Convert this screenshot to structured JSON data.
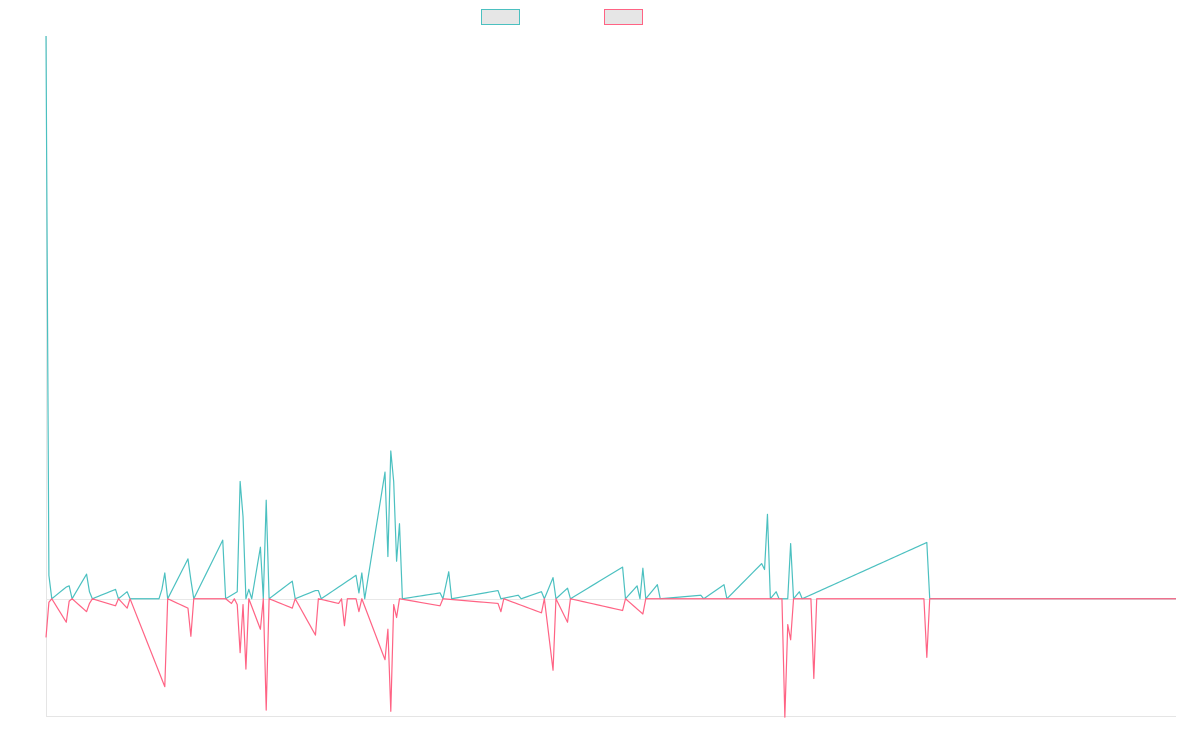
{
  "colors": {
    "series_a": "#4bc0c0",
    "series_b": "#ff6384",
    "legend_fill": "#e6e6e6",
    "axis": "#e5e5e5"
  },
  "chart_data": {
    "type": "line",
    "title": "",
    "xlabel": "",
    "ylabel": "",
    "grid": false,
    "legend": "top-center",
    "x_count": 391,
    "ylim": [
      -100,
      480
    ],
    "series": [
      {
        "color": "#4bc0c0",
        "points": [
          [
            0,
            480
          ],
          [
            1,
            20
          ],
          [
            2,
            0
          ],
          [
            7,
            10
          ],
          [
            8,
            11
          ],
          [
            9,
            0
          ],
          [
            14,
            21
          ],
          [
            15,
            6
          ],
          [
            16,
            0
          ],
          [
            24,
            8
          ],
          [
            25,
            0
          ],
          [
            28,
            6
          ],
          [
            29,
            0
          ],
          [
            39,
            0
          ],
          [
            40,
            8
          ],
          [
            41,
            22
          ],
          [
            42,
            0
          ],
          [
            49,
            34
          ],
          [
            50,
            16
          ],
          [
            51,
            0
          ],
          [
            61,
            50
          ],
          [
            62,
            0
          ],
          [
            66,
            6
          ],
          [
            67,
            100
          ],
          [
            68,
            70
          ],
          [
            69,
            0
          ],
          [
            70,
            8
          ],
          [
            71,
            0
          ],
          [
            74,
            44
          ],
          [
            75,
            0
          ],
          [
            76,
            84
          ],
          [
            77,
            0
          ],
          [
            85,
            15
          ],
          [
            86,
            0
          ],
          [
            93,
            7
          ],
          [
            94,
            7
          ],
          [
            95,
            0
          ],
          [
            107,
            20
          ],
          [
            108,
            5
          ],
          [
            109,
            22
          ],
          [
            110,
            0
          ],
          [
            117,
            108
          ],
          [
            118,
            36
          ],
          [
            119,
            126
          ],
          [
            120,
            100
          ],
          [
            121,
            32
          ],
          [
            122,
            64
          ],
          [
            123,
            0
          ],
          [
            136,
            5
          ],
          [
            137,
            0
          ],
          [
            139,
            23
          ],
          [
            140,
            0
          ],
          [
            156,
            7
          ],
          [
            157,
            0
          ],
          [
            163,
            3
          ],
          [
            164,
            0
          ],
          [
            171,
            6
          ],
          [
            172,
            0
          ],
          [
            175,
            18
          ],
          [
            176,
            0
          ],
          [
            180,
            9
          ],
          [
            181,
            0
          ],
          [
            199,
            27
          ],
          [
            200,
            0
          ],
          [
            204,
            11
          ],
          [
            205,
            0
          ],
          [
            206,
            26
          ],
          [
            207,
            0
          ],
          [
            211,
            12
          ],
          [
            212,
            0
          ],
          [
            226,
            3
          ],
          [
            227,
            0
          ],
          [
            234,
            12
          ],
          [
            235,
            0
          ],
          [
            247,
            30
          ],
          [
            248,
            25
          ],
          [
            249,
            72
          ],
          [
            250,
            0
          ],
          [
            252,
            6
          ],
          [
            253,
            0
          ],
          [
            256,
            0
          ],
          [
            257,
            47
          ],
          [
            258,
            0
          ],
          [
            260,
            6
          ],
          [
            261,
            0
          ],
          [
            304,
            48
          ],
          [
            305,
            0
          ],
          [
            390,
            0
          ]
        ]
      },
      {
        "color": "#ff6384",
        "points": [
          [
            0,
            -33
          ],
          [
            1,
            -3
          ],
          [
            2,
            0
          ],
          [
            7,
            -20
          ],
          [
            8,
            -2
          ],
          [
            9,
            0
          ],
          [
            14,
            -11
          ],
          [
            15,
            -4
          ],
          [
            16,
            0
          ],
          [
            24,
            -6
          ],
          [
            25,
            0
          ],
          [
            28,
            -8
          ],
          [
            29,
            0
          ],
          [
            41,
            -75
          ],
          [
            42,
            0
          ],
          [
            49,
            -8
          ],
          [
            50,
            -32
          ],
          [
            51,
            0
          ],
          [
            62,
            0
          ],
          [
            64,
            -4
          ],
          [
            65,
            0
          ],
          [
            66,
            -5
          ],
          [
            67,
            -46
          ],
          [
            68,
            -5
          ],
          [
            69,
            -60
          ],
          [
            70,
            0
          ],
          [
            74,
            -26
          ],
          [
            75,
            0
          ],
          [
            76,
            -95
          ],
          [
            77,
            0
          ],
          [
            85,
            -8
          ],
          [
            86,
            0
          ],
          [
            93,
            -31
          ],
          [
            94,
            0
          ],
          [
            101,
            -4
          ],
          [
            102,
            0
          ],
          [
            103,
            -23
          ],
          [
            104,
            0
          ],
          [
            107,
            0
          ],
          [
            108,
            -11
          ],
          [
            109,
            0
          ],
          [
            117,
            -52
          ],
          [
            118,
            -26
          ],
          [
            119,
            -96
          ],
          [
            120,
            -5
          ],
          [
            121,
            -16
          ],
          [
            122,
            0
          ],
          [
            136,
            -6
          ],
          [
            137,
            0
          ],
          [
            156,
            -4
          ],
          [
            157,
            -11
          ],
          [
            158,
            0
          ],
          [
            171,
            -12
          ],
          [
            172,
            0
          ],
          [
            175,
            -61
          ],
          [
            176,
            0
          ],
          [
            180,
            -20
          ],
          [
            181,
            0
          ],
          [
            199,
            -10
          ],
          [
            200,
            0
          ],
          [
            206,
            -13
          ],
          [
            207,
            0
          ],
          [
            254,
            0
          ],
          [
            255,
            -101
          ],
          [
            256,
            -22
          ],
          [
            257,
            -35
          ],
          [
            258,
            0
          ],
          [
            264,
            0
          ],
          [
            265,
            -68
          ],
          [
            266,
            0
          ],
          [
            303,
            0
          ],
          [
            304,
            -50
          ],
          [
            305,
            0
          ],
          [
            390,
            0
          ]
        ]
      }
    ]
  }
}
